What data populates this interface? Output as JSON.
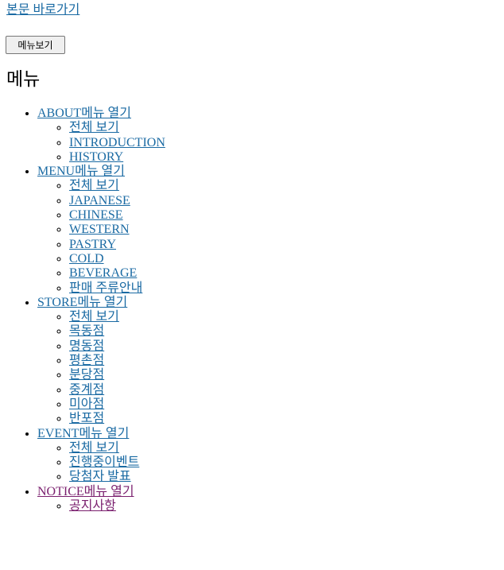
{
  "skip_link": "본문 바로가기",
  "menu_button": "메뉴보기",
  "menu_heading": "메뉴",
  "open_suffix": "메뉴 열기",
  "colors": {
    "link": "#1a6aa3",
    "visited": "#7a1f6e"
  },
  "nav": [
    {
      "label": "ABOUT",
      "items": [
        "전체 보기",
        "INTRODUCTION",
        "HISTORY"
      ]
    },
    {
      "label": "MENU",
      "items": [
        "전체 보기",
        "JAPANESE",
        "CHINESE",
        "WESTERN",
        "PASTRY",
        "COLD",
        "BEVERAGE",
        "판매 주류안내"
      ]
    },
    {
      "label": "STORE",
      "items": [
        "전체 보기",
        "목동점",
        "명동점",
        "평촌점",
        "분당점",
        "중계점",
        "미아점",
        "반포점"
      ]
    },
    {
      "label": "EVENT",
      "items": [
        "전체 보기",
        "진행중이벤트",
        "당첨자 발표"
      ]
    },
    {
      "label": "NOTICE",
      "items": [
        "공지사항"
      ]
    }
  ]
}
